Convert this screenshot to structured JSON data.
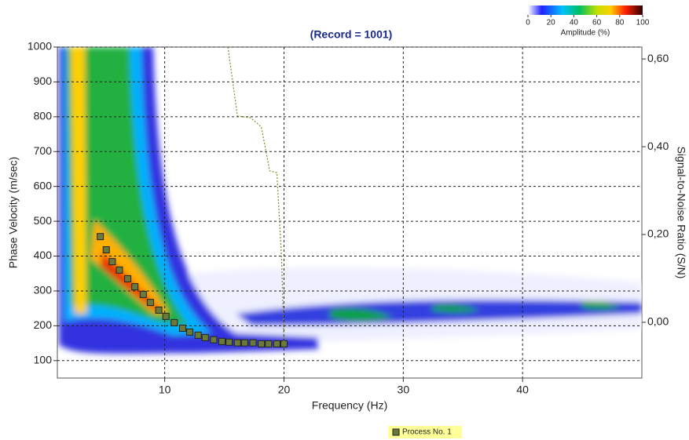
{
  "chart_data": {
    "type": "scatter",
    "title": "(Record = 1001)",
    "x_label": "Frequency (Hz)",
    "y_label": "Phase Velocity (m/sec)",
    "y2_label": "Signal-to-Noise Ratio (S/N)",
    "xlim": [
      1,
      50
    ],
    "ylim": [
      50,
      1000
    ],
    "y2lim": [
      -0.127,
      0.627
    ],
    "xticks": [
      10,
      20,
      30,
      40
    ],
    "yticks": [
      100,
      200,
      300,
      400,
      500,
      600,
      700,
      800,
      900,
      1000
    ],
    "y2ticks": [
      {
        "value": 0,
        "label": "0,00"
      },
      {
        "value": 0.2,
        "label": "0,20"
      },
      {
        "value": 0.4,
        "label": "0,40"
      },
      {
        "value": 0.6,
        "label": "0,60"
      }
    ],
    "grid": true,
    "series": [
      {
        "name": "Process No. 1",
        "color": "#6b7a3a",
        "x": [
          4.6,
          5.1,
          5.6,
          6.2,
          6.9,
          7.5,
          8.2,
          8.8,
          9.5,
          10.1,
          10.8,
          11.5,
          12.1,
          12.8,
          13.4,
          14.1,
          14.8,
          15.4,
          16.1,
          16.7,
          17.4,
          18.1,
          18.7,
          19.4,
          20.0
        ],
        "values": [
          456,
          418,
          384,
          360,
          335,
          312,
          290,
          267,
          245,
          227,
          209,
          193,
          182,
          173,
          166,
          160,
          155,
          153,
          151,
          151,
          151,
          148,
          148,
          148,
          148
        ]
      },
      {
        "type": "line",
        "axis": "y2",
        "color": "#8a8a2a",
        "x": [
          15.3,
          16.1,
          17.2,
          18.1,
          18.8,
          19.4,
          19.8,
          20.0
        ],
        "values": [
          0.627,
          0.47,
          0.466,
          0.445,
          0.345,
          0.341,
          0.145,
          -0.05
        ]
      }
    ],
    "colorbar": {
      "label": "Amplitude (%)",
      "lim": [
        0,
        100
      ],
      "ticks": [
        0,
        20,
        40,
        60,
        80,
        100
      ]
    }
  }
}
